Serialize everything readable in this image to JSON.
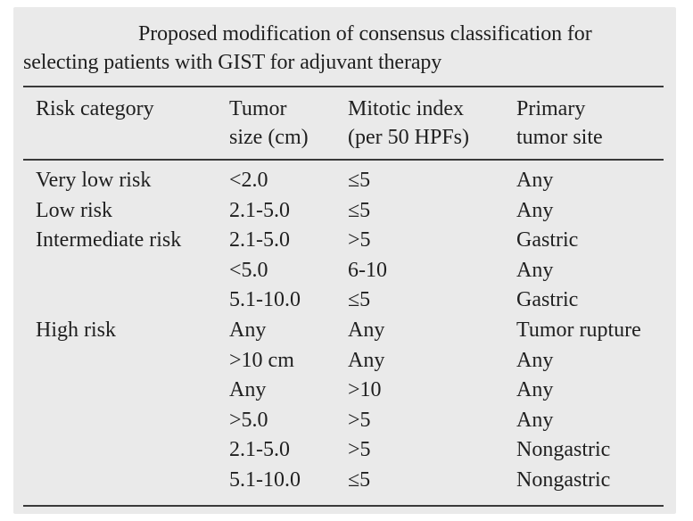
{
  "caption": "Proposed modification of consensus classification for selecting patients with GIST for adjuvant therapy",
  "table": {
    "headers": [
      [
        "Risk category"
      ],
      [
        "Tumor",
        "size (cm)"
      ],
      [
        "Mitotic index",
        "(per 50 HPFs)"
      ],
      [
        "Primary",
        "tumor site"
      ]
    ],
    "rows": [
      [
        "Very low risk",
        "<2.0",
        "≤5",
        "Any"
      ],
      [
        "Low risk",
        "2.1-5.0",
        "≤5",
        "Any"
      ],
      [
        "Intermediate risk",
        "2.1-5.0",
        ">5",
        "Gastric"
      ],
      [
        "",
        "<5.0",
        "6-10",
        "Any"
      ],
      [
        "",
        "5.1-10.0",
        "≤5",
        "Gastric"
      ],
      [
        "High risk",
        "Any",
        "Any",
        "Tumor rupture"
      ],
      [
        "",
        ">10 cm",
        "Any",
        "Any"
      ],
      [
        "",
        "Any",
        ">10",
        "Any"
      ],
      [
        "",
        ">5.0",
        ">5",
        "Any"
      ],
      [
        "",
        "2.1-5.0",
        ">5",
        "Nongastric"
      ],
      [
        "",
        "5.1-10.0",
        "≤5",
        "Nongastric"
      ]
    ]
  }
}
